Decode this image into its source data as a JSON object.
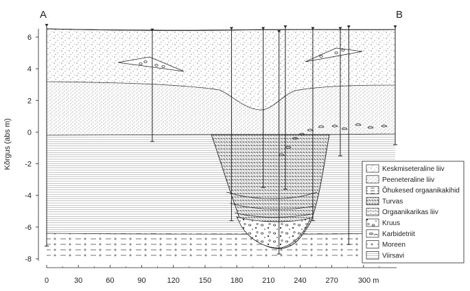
{
  "profile": {
    "end_labels": {
      "left": "A",
      "right": "B"
    },
    "y_axis": {
      "label": "Kõrgus (abs m)",
      "ticks": [
        "6",
        "4",
        "2",
        "0",
        "-2",
        "-4",
        "-6",
        "-8"
      ],
      "range": [
        -8,
        6
      ]
    },
    "x_axis": {
      "ticks": [
        "0",
        "30",
        "60",
        "90",
        "120",
        "150",
        "180",
        "210",
        "240",
        "270",
        "300 m"
      ],
      "range": [
        0,
        330
      ]
    },
    "boreholes_x_m": [
      0,
      100,
      175,
      205,
      220,
      226,
      252,
      278,
      286,
      330
    ]
  },
  "legend": {
    "items": [
      {
        "label": "Keskmiseteraline liiv",
        "pattern": "dots-coarse"
      },
      {
        "label": "Peeneteraline liiv",
        "pattern": "dots-fine"
      },
      {
        "label": "Õhukesed orgaanikakihid",
        "pattern": "dashed-layers"
      },
      {
        "label": "Turvas",
        "pattern": "hatch"
      },
      {
        "label": "Orgaanikarikas liiv",
        "pattern": "dotted-hatch"
      },
      {
        "label": "Kruus",
        "pattern": "gravel"
      },
      {
        "label": "Karbidetriit",
        "pattern": "shells"
      },
      {
        "label": "Moreen",
        "pattern": "dash-dot"
      },
      {
        "label": "Viirsavi",
        "pattern": "horizontal-lines"
      }
    ]
  }
}
